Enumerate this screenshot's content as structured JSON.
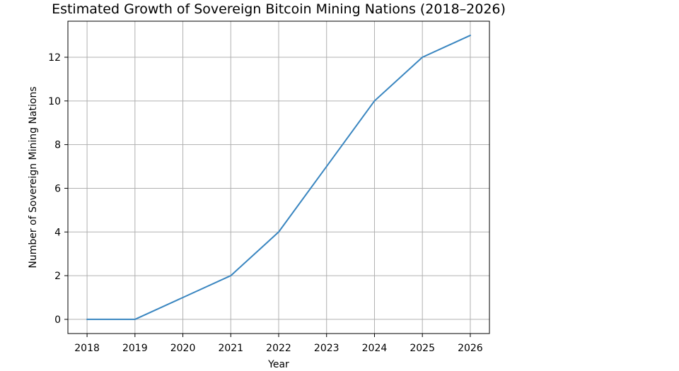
{
  "chart_data": {
    "type": "line",
    "title": "Estimated Growth of Sovereign Bitcoin Mining Nations (2018–2026)",
    "xlabel": "Year",
    "ylabel": "Number of Sovereign Mining Nations",
    "x": [
      2018,
      2019,
      2020,
      2021,
      2022,
      2023,
      2024,
      2025,
      2026
    ],
    "series": [
      {
        "values": [
          0,
          0,
          1,
          2,
          4,
          7,
          10,
          12,
          13
        ],
        "color": "#3a86c0"
      }
    ],
    "xticks": [
      "2018",
      "2019",
      "2020",
      "2021",
      "2022",
      "2023",
      "2024",
      "2025",
      "2026"
    ],
    "yticks": [
      "0",
      "2",
      "4",
      "6",
      "8",
      "10",
      "12"
    ],
    "xlim": [
      2017.6,
      2026.4
    ],
    "ylim": [
      -0.65,
      13.65
    ],
    "grid": true,
    "grid_color": "#b0b0b0",
    "axis_color": "#000000"
  }
}
